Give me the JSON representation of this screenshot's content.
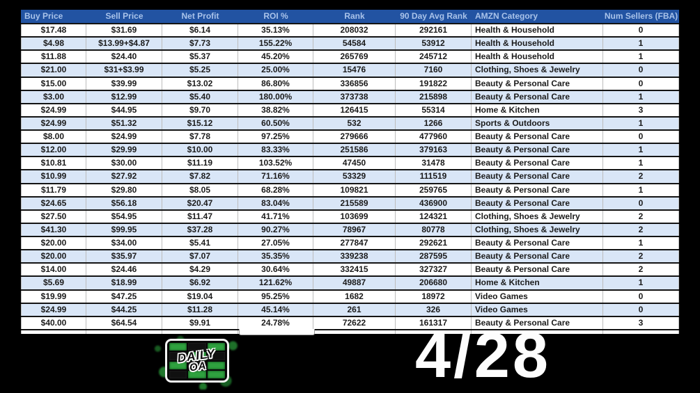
{
  "table": {
    "columns": [
      {
        "label": "Buy Price",
        "header_align": "left",
        "cell_align": "center"
      },
      {
        "label": "Sell Price",
        "header_align": "center",
        "cell_align": "center"
      },
      {
        "label": "Net Profit",
        "header_align": "center",
        "cell_align": "center"
      },
      {
        "label": "ROI %",
        "header_align": "center",
        "cell_align": "center"
      },
      {
        "label": "Rank",
        "header_align": "center",
        "cell_align": "center"
      },
      {
        "label": "90 Day Avg Rank",
        "header_align": "center",
        "cell_align": "center"
      },
      {
        "label": "AMZN Category",
        "header_align": "left",
        "cell_align": "left"
      },
      {
        "label": "Num Sellers (FBA)",
        "header_align": "center",
        "cell_align": "center"
      }
    ],
    "rows": [
      [
        "$17.48",
        "$31.69",
        "$6.14",
        "35.13%",
        "208032",
        "292161",
        "Health & Household",
        "0"
      ],
      [
        "$4.98",
        "$13.99+$4.87",
        "$7.73",
        "155.22%",
        "54584",
        "53912",
        "Health & Household",
        "1"
      ],
      [
        "$11.88",
        "$24.40",
        "$5.37",
        "45.20%",
        "265769",
        "245712",
        "Health & Household",
        "1"
      ],
      [
        "$21.00",
        "$31+$3.99",
        "$5.25",
        "25.00%",
        "15476",
        "7160",
        "Clothing, Shoes & Jewelry",
        "0"
      ],
      [
        "$15.00",
        "$39.99",
        "$13.02",
        "86.80%",
        "336856",
        "191822",
        "Beauty & Personal Care",
        "0"
      ],
      [
        "$3.00",
        "$12.99",
        "$5.40",
        "180.00%",
        "373738",
        "215898",
        "Beauty & Personal Care",
        "1"
      ],
      [
        "$24.99",
        "$44.95",
        "$9.70",
        "38.82%",
        "126415",
        "55314",
        "Home & Kitchen",
        "3"
      ],
      [
        "$24.99",
        "$51.32",
        "$15.12",
        "60.50%",
        "532",
        "1266",
        "Sports & Outdoors",
        "1"
      ],
      [
        "$8.00",
        "$24.99",
        "$7.78",
        "97.25%",
        "279666",
        "477960",
        "Beauty & Personal Care",
        "0"
      ],
      [
        "$12.00",
        "$29.99",
        "$10.00",
        "83.33%",
        "251586",
        "379163",
        "Beauty & Personal Care",
        "1"
      ],
      [
        "$10.81",
        "$30.00",
        "$11.19",
        "103.52%",
        "47450",
        "31478",
        "Beauty & Personal Care",
        "1"
      ],
      [
        "$10.99",
        "$27.92",
        "$7.82",
        "71.16%",
        "53329",
        "111519",
        "Beauty & Personal Care",
        "2"
      ],
      [
        "$11.79",
        "$29.80",
        "$8.05",
        "68.28%",
        "109821",
        "259765",
        "Beauty & Personal Care",
        "1"
      ],
      [
        "$24.65",
        "$56.18",
        "$20.47",
        "83.04%",
        "215589",
        "436900",
        "Beauty & Personal Care",
        "0"
      ],
      [
        "$27.50",
        "$54.95",
        "$11.47",
        "41.71%",
        "103699",
        "124321",
        "Clothing, Shoes & Jewelry",
        "2"
      ],
      [
        "$41.30",
        "$99.95",
        "$37.28",
        "90.27%",
        "78967",
        "80778",
        "Clothing, Shoes & Jewelry",
        "2"
      ],
      [
        "$20.00",
        "$34.00",
        "$5.41",
        "27.05%",
        "277847",
        "292621",
        "Beauty & Personal Care",
        "1"
      ],
      [
        "$20.00",
        "$35.97",
        "$7.07",
        "35.35%",
        "339238",
        "287595",
        "Beauty & Personal Care",
        "2"
      ],
      [
        "$14.00",
        "$24.46",
        "$4.29",
        "30.64%",
        "332415",
        "327327",
        "Beauty & Personal Care",
        "2"
      ],
      [
        "$5.69",
        "$18.99",
        "$6.92",
        "121.62%",
        "49887",
        "206680",
        "Home & Kitchen",
        "1"
      ],
      [
        "$19.99",
        "$47.25",
        "$19.04",
        "95.25%",
        "1682",
        "18972",
        "Video Games",
        "0"
      ],
      [
        "$24.99",
        "$44.25",
        "$11.28",
        "45.14%",
        "261",
        "326",
        "Video Games",
        "0"
      ],
      [
        "$40.00",
        "$64.54",
        "$9.91",
        "24.78%",
        "72622",
        "161317",
        "Beauty & Personal Care",
        "3"
      ]
    ]
  },
  "footer": {
    "logo_line1": "DAILY",
    "logo_line2": "OA",
    "date": "4/28"
  },
  "colors": {
    "header_bg": "#2253a2",
    "header_text": "#a9c3ea",
    "alt_row": "#d9e6f7",
    "row_border": "#141414",
    "col_border": "#bcbcbc",
    "logo_green": "#2fa13f",
    "page_bg": "#000000",
    "date_color": "#fdfdfd"
  }
}
